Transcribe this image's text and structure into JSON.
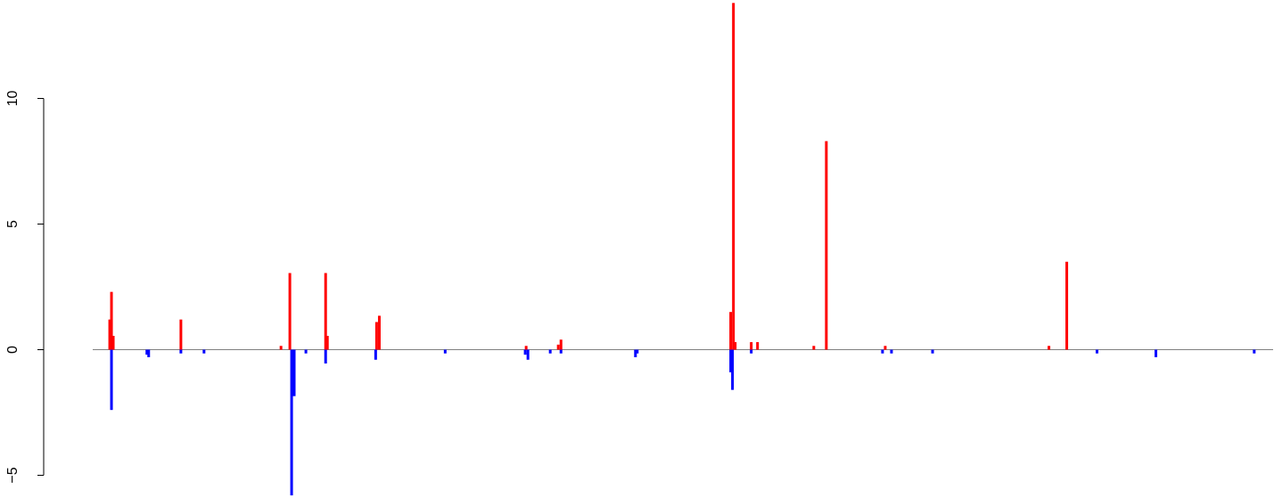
{
  "chart_data": {
    "type": "bar",
    "title": "",
    "xlabel": "",
    "ylabel": "",
    "ylim": [
      -5.8,
      13.8
    ],
    "xlim": [
      0,
      1000
    ],
    "yticks": [
      -5,
      0,
      5,
      10
    ],
    "ytick_labels": [
      "−5",
      "0",
      "5",
      "10"
    ],
    "grid": false,
    "legend": "none",
    "colors": {
      "positive": "#ff0000",
      "negative": "#0000ff",
      "baseline": "#808080",
      "axis": "#000000"
    },
    "series": [
      {
        "values_positive": [
          {
            "x": 14.4,
            "y": 1.2
          },
          {
            "x": 15.9,
            "y": 2.3
          },
          {
            "x": 17.4,
            "y": 0.55
          },
          {
            "x": 74.7,
            "y": 1.2
          },
          {
            "x": 159.5,
            "y": 0.15
          },
          {
            "x": 167.0,
            "y": 3.05
          },
          {
            "x": 197.3,
            "y": 3.05
          },
          {
            "x": 198.8,
            "y": 0.55
          },
          {
            "x": 240.5,
            "y": 1.1
          },
          {
            "x": 242.8,
            "y": 1.35
          },
          {
            "x": 367.2,
            "y": 0.15
          },
          {
            "x": 394.4,
            "y": 0.2
          },
          {
            "x": 396.7,
            "y": 0.4
          },
          {
            "x": 540.5,
            "y": 1.5
          },
          {
            "x": 542.8,
            "y": 13.8
          },
          {
            "x": 544.3,
            "y": 0.3
          },
          {
            "x": 557.9,
            "y": 0.3
          },
          {
            "x": 563.2,
            "y": 0.3
          },
          {
            "x": 610.9,
            "y": 0.15
          },
          {
            "x": 621.5,
            "y": 8.3
          },
          {
            "x": 671.4,
            "y": 0.15
          },
          {
            "x": 810.1,
            "y": 0.15
          },
          {
            "x": 825.2,
            "y": 3.5
          }
        ],
        "values_negative": [
          {
            "x": 15.9,
            "y": -2.4
          },
          {
            "x": 45.9,
            "y": -0.2
          },
          {
            "x": 47.4,
            "y": -0.3
          },
          {
            "x": 74.7,
            "y": -0.15
          },
          {
            "x": 94.3,
            "y": -0.15
          },
          {
            "x": 168.5,
            "y": -5.8
          },
          {
            "x": 170.7,
            "y": -1.85
          },
          {
            "x": 180.6,
            "y": -0.15
          },
          {
            "x": 197.3,
            "y": -0.55
          },
          {
            "x": 239.7,
            "y": -0.4
          },
          {
            "x": 298.6,
            "y": -0.15
          },
          {
            "x": 366.4,
            "y": -0.2
          },
          {
            "x": 368.7,
            "y": -0.4
          },
          {
            "x": 387.6,
            "y": -0.15
          },
          {
            "x": 396.7,
            "y": -0.15
          },
          {
            "x": 459.8,
            "y": -0.3
          },
          {
            "x": 461.3,
            "y": -0.15
          },
          {
            "x": 540.5,
            "y": -0.9
          },
          {
            "x": 542.0,
            "y": -1.6
          },
          {
            "x": 557.9,
            "y": -0.15
          },
          {
            "x": 669.1,
            "y": -0.15
          },
          {
            "x": 676.7,
            "y": -0.15
          },
          {
            "x": 711.5,
            "y": -0.15
          },
          {
            "x": 850.8,
            "y": -0.15
          },
          {
            "x": 900.7,
            "y": -0.3
          },
          {
            "x": 984.0,
            "y": -0.15
          }
        ]
      }
    ]
  }
}
